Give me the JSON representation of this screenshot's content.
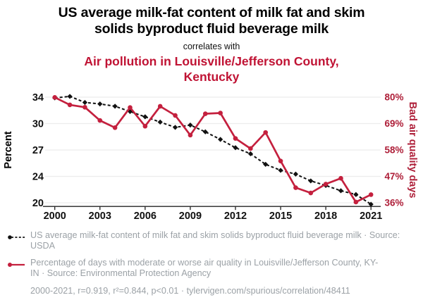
{
  "header": {
    "title": "US average milk-fat content of milk fat and skim solids byproduct fluid beverage milk",
    "subtitle": "correlates with",
    "title2": "Air pollution in Louisville/Jefferson County, Kentucky"
  },
  "colors": {
    "title_red": "#c01334",
    "line_red": "#c4203e",
    "axis_red": "#ae1e38",
    "text_black": "#111111",
    "legend_gray": "#9ba1a6",
    "gridline": "#ececec",
    "axis_line": "#222222"
  },
  "chart_data": {
    "type": "line",
    "x": [
      2000,
      2001,
      2002,
      2003,
      2004,
      2005,
      2006,
      2007,
      2008,
      2009,
      2010,
      2011,
      2012,
      2013,
      2014,
      2015,
      2016,
      2017,
      2018,
      2019,
      2020,
      2021
    ],
    "x_ticks": [
      "2000",
      "2003",
      "2006",
      "2009",
      "2012",
      "2015",
      "2018",
      "2021"
    ],
    "grid": "horizontal",
    "left_axis": {
      "label": "Percent",
      "tick_labels": [
        "34",
        "30",
        "27",
        "24",
        "20"
      ],
      "scale": [
        34,
        20
      ]
    },
    "right_axis": {
      "label": "Bad air quality days",
      "tick_labels": [
        "80%",
        "69%",
        "58%",
        "47%",
        "36%"
      ],
      "scale": [
        80,
        36
      ]
    },
    "series": [
      {
        "name": "US average milk-fat content of milk fat and skim solids byproduct fluid beverage milk",
        "axis": "left",
        "color": "#111111",
        "line_style": "dashed",
        "marker": "diamond",
        "values": [
          33.9,
          34.1,
          33.3,
          33.1,
          32.8,
          32.1,
          31.4,
          30.7,
          30.0,
          30.3,
          29.4,
          28.4,
          27.3,
          26.5,
          25.1,
          24.3,
          23.8,
          22.9,
          22.3,
          21.6,
          21.1,
          19.8
        ]
      },
      {
        "name": "Percentage of days with moderate or worse air quality in Louisville/Jefferson County, KY-IN",
        "axis": "right",
        "color": "#c4203e",
        "line_style": "solid",
        "marker": "circle",
        "values": [
          79.9,
          76.8,
          75.8,
          70.3,
          67.3,
          75.7,
          67.9,
          76.2,
          72.4,
          64.2,
          73.1,
          73.4,
          62.8,
          58.6,
          65.3,
          53.4,
          42.3,
          40.1,
          43.8,
          46.2,
          36.3,
          39.4
        ]
      }
    ]
  },
  "legend": {
    "items": [
      {
        "label": "US average milk-fat content of milk fat and skim solids byproduct fluid beverage milk · Source: USDA"
      },
      {
        "label": "Percentage of days with moderate or worse air quality in Louisville/Jefferson County, KY-IN · Source: Environmental Protection Agency"
      }
    ]
  },
  "footer": {
    "stats": "2000-2021, r=0.919, r²=0.844, p<0.01 · tylervigen.com/spurious/correlation/48411"
  }
}
